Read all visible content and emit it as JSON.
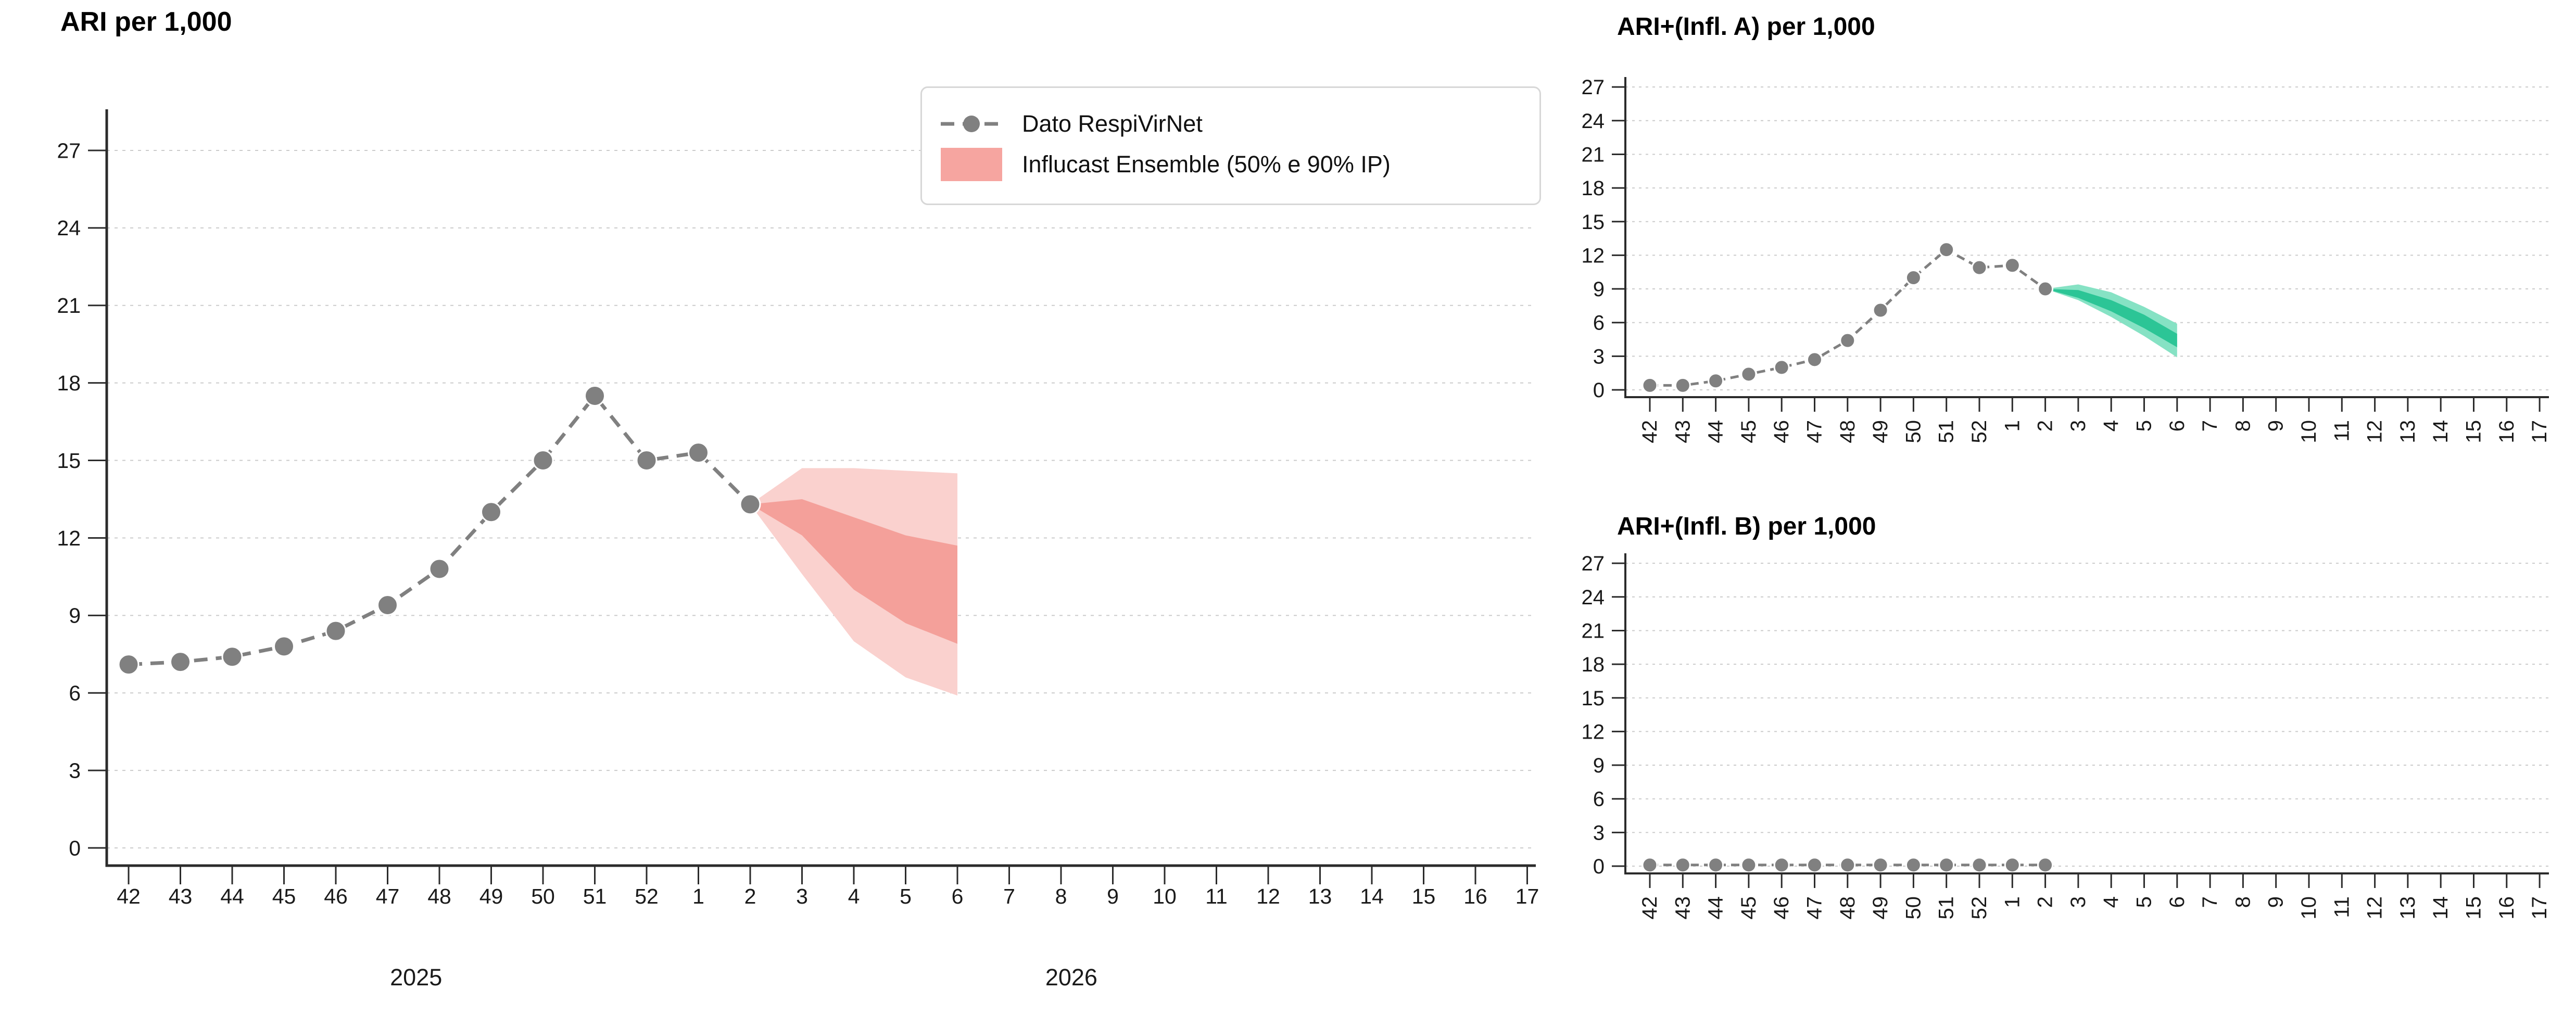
{
  "figure": {
    "background": "#ffffff",
    "grid_color": "#cbcbcb",
    "axis_color": "#2b2b2b",
    "tick_label_color": "#1a1a1a"
  },
  "legend": {
    "position": "top-right-of-main-chart",
    "border_color": "#d7d7d7",
    "items": [
      {
        "label": "Dato RespiVirNet",
        "marker": "dashed-line-with-dot",
        "color": "#808080"
      },
      {
        "label": "Influcast Ensemble (50% e 90% IP)",
        "marker": "filled-patch",
        "color": "#f6a5a0"
      }
    ]
  },
  "chart_data": [
    {
      "id": "ari",
      "type": "line",
      "title": "ARI per 1,000",
      "x_tick_labels": [
        "42",
        "43",
        "44",
        "45",
        "46",
        "47",
        "48",
        "49",
        "50",
        "51",
        "52",
        "1",
        "2",
        "3",
        "4",
        "5",
        "6",
        "7",
        "8",
        "9",
        "10",
        "11",
        "12",
        "13",
        "14",
        "15",
        "16",
        "17"
      ],
      "x_label_rotation": 0,
      "y_ticks": [
        0,
        3,
        6,
        9,
        12,
        15,
        18,
        21,
        24,
        27
      ],
      "ylim": [
        0,
        28.6
      ],
      "grid": true,
      "year_labels": [
        {
          "text": "2025",
          "center_index": 5.55
        },
        {
          "text": "2026",
          "center_index": 18.2
        }
      ],
      "observed": {
        "name": "Dato RespiVirNet",
        "color": "#808080",
        "values": [
          7.1,
          7.2,
          7.4,
          7.8,
          8.4,
          9.4,
          10.8,
          13.0,
          15.0,
          17.5,
          15.0,
          15.3,
          13.3
        ]
      },
      "forecast": {
        "name": "Influcast Ensemble (50% e 90% IP)",
        "color_90": "#fad1ce",
        "color_50": "#f4a09a",
        "anchor_index": 12,
        "anchor_value": 13.3,
        "indices": [
          13,
          14,
          15,
          16
        ],
        "q90_upper": [
          14.7,
          14.7,
          14.6,
          14.5
        ],
        "q50_upper": [
          13.5,
          12.8,
          12.1,
          11.7
        ],
        "q50_lower": [
          12.1,
          10.0,
          8.7,
          7.9
        ],
        "q90_lower": [
          10.6,
          8.0,
          6.6,
          5.9
        ]
      }
    },
    {
      "id": "infl_a",
      "type": "line",
      "title": "ARI+(Infl. A) per 1,000",
      "x_tick_labels": [
        "42",
        "43",
        "44",
        "45",
        "46",
        "47",
        "48",
        "49",
        "50",
        "51",
        "52",
        "1",
        "2",
        "3",
        "4",
        "5",
        "6",
        "7",
        "8",
        "9",
        "10",
        "11",
        "12",
        "13",
        "14",
        "15",
        "16",
        "17"
      ],
      "x_label_rotation": -90,
      "y_ticks": [
        0,
        3,
        6,
        9,
        12,
        15,
        18,
        21,
        24,
        27
      ],
      "ylim": [
        0,
        27.9
      ],
      "grid": true,
      "year_labels": [],
      "observed": {
        "name": "Dato RespiVirNet",
        "color": "#808080",
        "values": [
          0.4,
          0.4,
          0.8,
          1.4,
          2.0,
          2.7,
          4.4,
          7.1,
          10.0,
          12.5,
          10.9,
          11.1,
          9.0
        ]
      },
      "forecast": {
        "name": "Influcast Ensemble (50% e 90% IP)",
        "color_90": "#86e2c4",
        "color_50": "#2cc596",
        "anchor_index": 12,
        "anchor_value": 9.0,
        "indices": [
          13,
          14,
          15,
          16
        ],
        "q90_upper": [
          9.4,
          8.7,
          7.4,
          5.9
        ],
        "q50_upper": [
          8.9,
          8.0,
          6.7,
          5.0
        ],
        "q50_lower": [
          8.2,
          7.0,
          5.5,
          3.8
        ],
        "q90_lower": [
          8.0,
          6.5,
          4.8,
          2.9
        ]
      }
    },
    {
      "id": "infl_b",
      "type": "line",
      "title": "ARI+(Infl. B) per 1,000",
      "x_tick_labels": [
        "42",
        "43",
        "44",
        "45",
        "46",
        "47",
        "48",
        "49",
        "50",
        "51",
        "52",
        "1",
        "2",
        "3",
        "4",
        "5",
        "6",
        "7",
        "8",
        "9",
        "10",
        "11",
        "12",
        "13",
        "14",
        "15",
        "16",
        "17"
      ],
      "x_label_rotation": -90,
      "y_ticks": [
        0,
        3,
        6,
        9,
        12,
        15,
        18,
        21,
        24,
        27
      ],
      "ylim": [
        0,
        27.9
      ],
      "grid": true,
      "year_labels": [],
      "observed": {
        "name": "Dato RespiVirNet",
        "color": "#808080",
        "values": [
          0.1,
          0.1,
          0.1,
          0.1,
          0.1,
          0.1,
          0.1,
          0.1,
          0.1,
          0.1,
          0.1,
          0.1,
          0.1
        ]
      },
      "forecast": null
    }
  ]
}
